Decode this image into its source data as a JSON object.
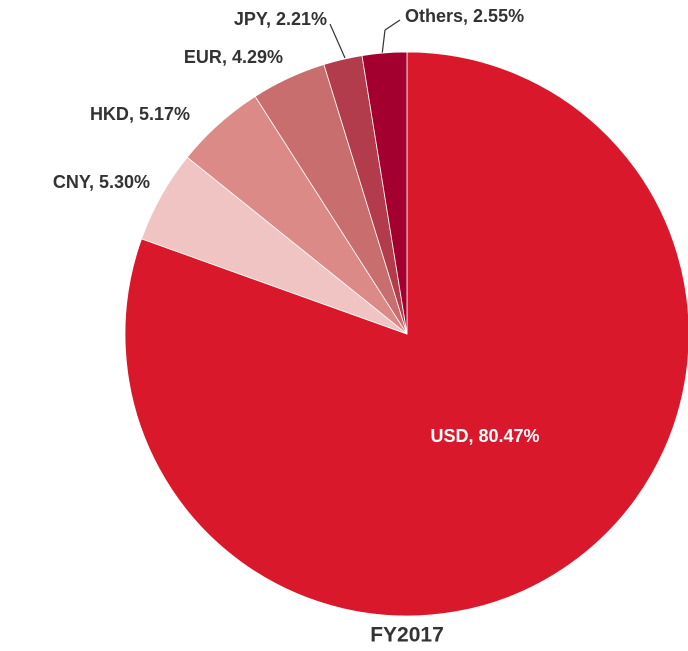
{
  "chart_data": {
    "type": "pie",
    "title": "FY2017",
    "categories": [
      "USD",
      "CNY",
      "HKD",
      "EUR",
      "JPY",
      "Others"
    ],
    "values": [
      80.47,
      5.3,
      5.17,
      4.29,
      2.21,
      2.55
    ],
    "value_labels": [
      "80.47%",
      "5.30%",
      "5.17%",
      "4.29%",
      "2.21%",
      "2.55%"
    ],
    "colors": [
      "#d9182b",
      "#f0c4c2",
      "#db8a87",
      "#c86e6f",
      "#b23c4b",
      "#a3002f"
    ]
  }
}
